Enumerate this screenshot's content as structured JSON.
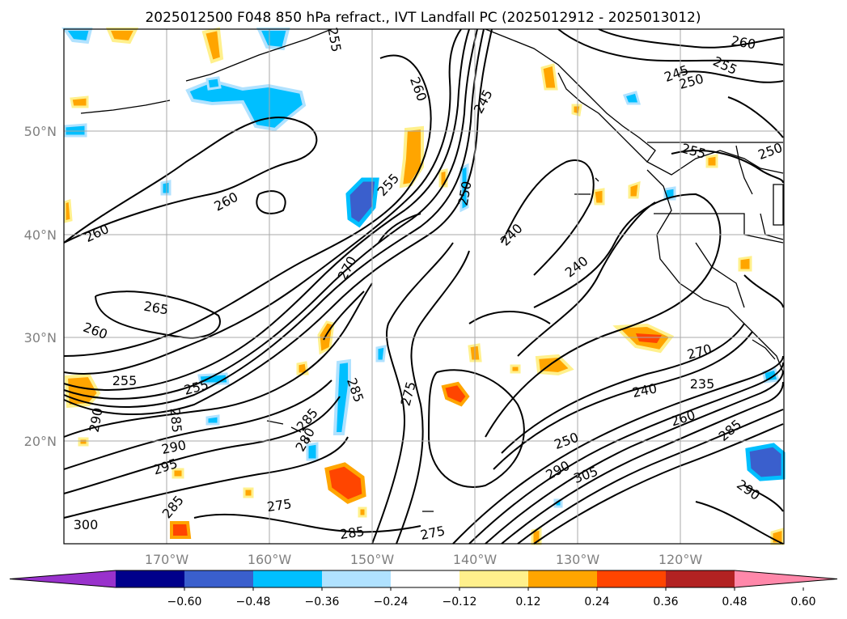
{
  "title": "2025012500 F048 850 hPa refract., IVT Landfall PC (2025012912 - 2025013012)",
  "map": {
    "lat_labels": [
      "50°N",
      "40°N",
      "30°N",
      "20°N"
    ],
    "lon_labels": [
      "170°W",
      "160°W",
      "150°W",
      "140°W",
      "130°W",
      "120°W"
    ],
    "contour_labels": [
      "260",
      "260",
      "265",
      "260",
      "255",
      "255",
      "290",
      "285",
      "290",
      "295",
      "285",
      "275",
      "300",
      "285",
      "275",
      "280",
      "285",
      "285",
      "270",
      "255",
      "260",
      "250",
      "245",
      "240",
      "240",
      "260",
      "255",
      "245",
      "250",
      "255",
      "250",
      "255",
      "270",
      "275",
      "235",
      "240",
      "260",
      "250",
      "290",
      "285",
      "305",
      "290"
    ]
  },
  "colorbar": {
    "ticks": [
      "−0.60",
      "−0.48",
      "−0.36",
      "−0.24",
      "−0.12",
      "0.12",
      "0.24",
      "0.36",
      "0.48",
      "0.60"
    ],
    "colors": [
      "#9932cc",
      "#00008b",
      "#3a5fcd",
      "#00bfff",
      "#b0e2ff",
      "#ffffff",
      "#fff08c",
      "#ffa500",
      "#ff4500",
      "#b22222",
      "#ff88aa"
    ]
  }
}
